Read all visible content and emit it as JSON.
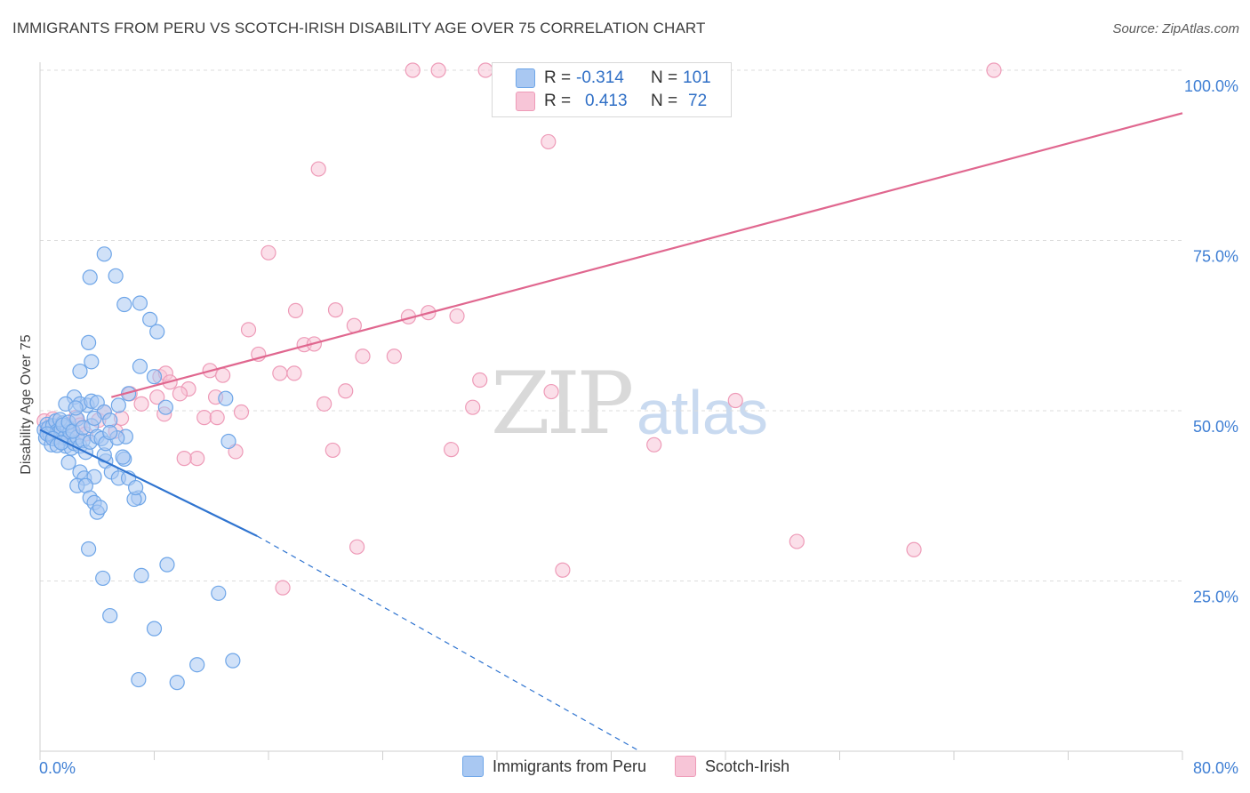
{
  "title": "IMMIGRANTS FROM PERU VS SCOTCH-IRISH DISABILITY AGE OVER 75 CORRELATION CHART",
  "source": "Source: ZipAtlas.com",
  "watermark": {
    "zip": "ZIP",
    "atlas": "atlas"
  },
  "colors": {
    "blue": "#6fa6e8",
    "blue_fill": "#a9c8f2",
    "blue_line": "#2f74d0",
    "pink": "#ee9bb8",
    "pink_fill": "#f7c5d7",
    "pink_line": "#e0678f",
    "tick_blue": "#3f7fd4"
  },
  "stats": {
    "rows": [
      {
        "r_label": "R =",
        "r_value": "-0.314",
        "n_label": "N =",
        "n_value": "101"
      },
      {
        "r_label": "R =",
        "r_value": "0.413",
        "n_label": "N =",
        "n_value": "72"
      }
    ]
  },
  "legend": {
    "items": [
      "Immigrants from Peru",
      "Scotch-Irish"
    ]
  },
  "chart_data": {
    "type": "scatter",
    "title": "IMMIGRANTS FROM PERU VS SCOTCH-IRISH DISABILITY AGE OVER 75 CORRELATION CHART",
    "xlabel": "",
    "ylabel": "Disability Age Over 75",
    "xlim": [
      0,
      80
    ],
    "ylim": [
      0,
      102
    ],
    "x_tick_labels": [
      "0.0%",
      "80.0%"
    ],
    "y_tick_labels": [
      "25.0%",
      "50.0%",
      "75.0%",
      "100.0%"
    ],
    "y_ticks": [
      25,
      50,
      75,
      100
    ],
    "grid": true,
    "legend_position": "bottom",
    "series": [
      {
        "name": "Immigrants from Peru",
        "points": [
          [
            0.3,
            47.2
          ],
          [
            0.4,
            46.0
          ],
          [
            0.5,
            48.0
          ],
          [
            0.6,
            47.5
          ],
          [
            0.7,
            46.5
          ],
          [
            0.8,
            45.0
          ],
          [
            0.9,
            47.8
          ],
          [
            1.0,
            46.2
          ],
          [
            1.1,
            48.5
          ],
          [
            1.2,
            47.0
          ],
          [
            1.3,
            46.8
          ],
          [
            1.4,
            45.5
          ],
          [
            1.5,
            47.3
          ],
          [
            1.6,
            48.2
          ],
          [
            1.7,
            46.0
          ],
          [
            1.8,
            44.8
          ],
          [
            1.9,
            47.6
          ],
          [
            2.0,
            45.8
          ],
          [
            2.1,
            46.9
          ],
          [
            2.2,
            44.5
          ],
          [
            0.5,
            46.6
          ],
          [
            0.9,
            45.9
          ],
          [
            1.2,
            44.9
          ],
          [
            1.5,
            45.3
          ],
          [
            2.4,
            45.2
          ],
          [
            2.6,
            46.1
          ],
          [
            2.8,
            44.8
          ],
          [
            3.0,
            45.6
          ],
          [
            3.2,
            43.9
          ],
          [
            3.5,
            45.4
          ],
          [
            1.4,
            48.7
          ],
          [
            1.6,
            47.9
          ],
          [
            2.0,
            48.3
          ],
          [
            2.3,
            47.0
          ],
          [
            2.6,
            48.8
          ],
          [
            3.0,
            47.5
          ],
          [
            3.3,
            50.8
          ],
          [
            3.6,
            47.8
          ],
          [
            4.0,
            46.2
          ],
          [
            4.3,
            45.9
          ],
          [
            2.4,
            52.0
          ],
          [
            2.8,
            51.0
          ],
          [
            3.6,
            51.4
          ],
          [
            4.0,
            51.2
          ],
          [
            4.5,
            49.8
          ],
          [
            4.9,
            48.6
          ],
          [
            5.5,
            50.8
          ],
          [
            1.8,
            51.0
          ],
          [
            2.5,
            50.4
          ],
          [
            3.8,
            48.9
          ],
          [
            2.0,
            42.4
          ],
          [
            2.8,
            41.0
          ],
          [
            3.1,
            40.1
          ],
          [
            3.8,
            40.3
          ],
          [
            4.6,
            42.6
          ],
          [
            5.0,
            41.0
          ],
          [
            5.5,
            40.1
          ],
          [
            5.9,
            42.9
          ],
          [
            6.2,
            40.1
          ],
          [
            6.9,
            37.2
          ],
          [
            2.6,
            39.0
          ],
          [
            3.2,
            39.0
          ],
          [
            3.5,
            37.2
          ],
          [
            3.8,
            36.5
          ],
          [
            4.0,
            35.1
          ],
          [
            4.2,
            35.8
          ],
          [
            6.6,
            37.0
          ],
          [
            6.7,
            38.7
          ],
          [
            5.8,
            43.2
          ],
          [
            4.5,
            43.5
          ],
          [
            2.8,
            55.8
          ],
          [
            3.6,
            57.2
          ],
          [
            3.4,
            60.0
          ],
          [
            7.0,
            56.5
          ],
          [
            8.0,
            55.0
          ],
          [
            8.8,
            50.5
          ],
          [
            6.2,
            52.5
          ],
          [
            13.0,
            51.8
          ],
          [
            13.2,
            45.5
          ],
          [
            6.0,
            46.2
          ],
          [
            4.5,
            73.0
          ],
          [
            3.5,
            69.6
          ],
          [
            5.3,
            69.8
          ],
          [
            5.9,
            65.6
          ],
          [
            7.0,
            65.8
          ],
          [
            7.7,
            63.4
          ],
          [
            8.2,
            61.6
          ],
          [
            3.4,
            29.7
          ],
          [
            4.4,
            25.4
          ],
          [
            7.1,
            25.8
          ],
          [
            8.9,
            27.4
          ],
          [
            12.5,
            23.2
          ],
          [
            4.9,
            19.9
          ],
          [
            8.0,
            18.0
          ],
          [
            6.9,
            10.5
          ],
          [
            9.6,
            10.1
          ],
          [
            11.0,
            12.7
          ],
          [
            13.5,
            13.3
          ],
          [
            4.6,
            45.2
          ],
          [
            5.4,
            46.0
          ],
          [
            4.9,
            46.8
          ]
        ],
        "trend": {
          "x1": 0.0,
          "y1": 47.2,
          "x2": 15.2,
          "y2": 31.6,
          "dash_to_x": 42.0,
          "dash_to_y": 0.0
        }
      },
      {
        "name": "Scotch-Irish",
        "points": [
          [
            0.3,
            48.5
          ],
          [
            0.5,
            47.2
          ],
          [
            0.7,
            46.4
          ],
          [
            0.9,
            48.8
          ],
          [
            1.1,
            46.5
          ],
          [
            1.3,
            47.6
          ],
          [
            1.6,
            48.2
          ],
          [
            1.9,
            46.8
          ],
          [
            2.2,
            47.0
          ],
          [
            2.5,
            49.0
          ],
          [
            2.8,
            47.9
          ],
          [
            3.2,
            46.6
          ],
          [
            4.1,
            48.6
          ],
          [
            4.5,
            49.8
          ],
          [
            5.3,
            47.0
          ],
          [
            5.7,
            48.9
          ],
          [
            6.3,
            52.5
          ],
          [
            7.1,
            51.0
          ],
          [
            8.2,
            52.0
          ],
          [
            8.7,
            49.5
          ],
          [
            8.4,
            55.0
          ],
          [
            8.8,
            55.5
          ],
          [
            9.1,
            54.2
          ],
          [
            10.4,
            53.2
          ],
          [
            11.0,
            43.0
          ],
          [
            10.1,
            43.0
          ],
          [
            11.5,
            49.0
          ],
          [
            11.9,
            55.9
          ],
          [
            12.4,
            49.0
          ],
          [
            12.8,
            55.2
          ],
          [
            13.7,
            44.0
          ],
          [
            14.1,
            49.8
          ],
          [
            14.6,
            61.9
          ],
          [
            15.3,
            58.3
          ],
          [
            16.0,
            73.2
          ],
          [
            16.8,
            55.5
          ],
          [
            17.0,
            24.0
          ],
          [
            17.8,
            55.5
          ],
          [
            17.9,
            64.7
          ],
          [
            18.5,
            59.7
          ],
          [
            19.2,
            59.8
          ],
          [
            19.5,
            85.5
          ],
          [
            19.9,
            51.0
          ],
          [
            20.5,
            44.2
          ],
          [
            20.7,
            64.8
          ],
          [
            21.4,
            52.9
          ],
          [
            22.0,
            62.5
          ],
          [
            22.2,
            30.0
          ],
          [
            22.6,
            58.0
          ],
          [
            24.8,
            58.0
          ],
          [
            25.8,
            63.8
          ],
          [
            26.1,
            100.0
          ],
          [
            27.2,
            64.4
          ],
          [
            27.9,
            100.0
          ],
          [
            28.8,
            44.3
          ],
          [
            29.2,
            63.9
          ],
          [
            30.3,
            50.5
          ],
          [
            30.8,
            54.5
          ],
          [
            31.2,
            100.0
          ],
          [
            35.0,
            99.5
          ],
          [
            35.6,
            89.5
          ],
          [
            35.8,
            52.8
          ],
          [
            36.6,
            26.6
          ],
          [
            37.5,
            100.0
          ],
          [
            42.2,
            100.0
          ],
          [
            43.0,
            45.0
          ],
          [
            48.7,
            51.5
          ],
          [
            53.0,
            30.8
          ],
          [
            61.2,
            29.6
          ],
          [
            66.8,
            100.0
          ],
          [
            12.3,
            52.0
          ],
          [
            9.8,
            52.5
          ]
        ],
        "trend": {
          "x1": 5.0,
          "y1": 52.0,
          "x2": 80.0,
          "y2": 93.7
        }
      }
    ]
  }
}
